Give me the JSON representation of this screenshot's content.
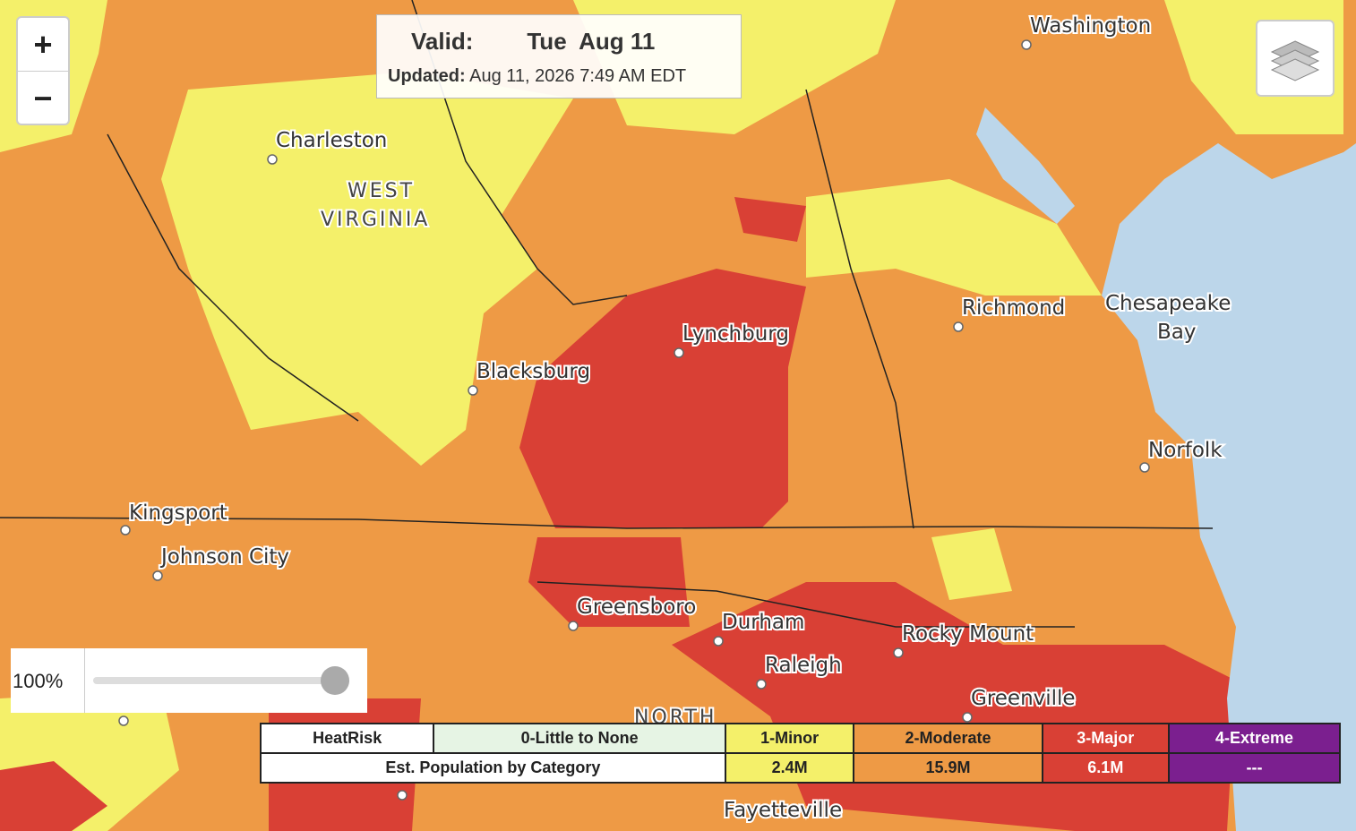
{
  "header": {
    "valid_label": "Valid:",
    "valid_date": "Tue  Aug 11",
    "updated_label": "Updated:",
    "updated_time": "Aug 11, 2026 7:49 AM EDT"
  },
  "zoom": {
    "in": "+",
    "out": "−"
  },
  "opacity": {
    "label": "100%"
  },
  "map_labels": [
    "Washington",
    "Charleston",
    "WEST",
    "VIRGINIA",
    "Chesapeake",
    "Bay",
    "Richmond",
    "Lynchburg",
    "Blacksburg",
    "Norfolk",
    "Kingsport",
    "Johnson City",
    "Greensboro",
    "Durham",
    "Raleigh",
    "Rocky Mount",
    "Greenville",
    "NORTH",
    "Fayetteville"
  ],
  "legend": {
    "header": [
      "HeatRisk",
      "0-Little to None",
      "1-Minor",
      "2-Moderate",
      "3-Major",
      "4-Extreme"
    ],
    "population_label": "Est. Population by Category",
    "population": [
      "2.4M",
      "15.9M",
      "6.1M",
      "---"
    ]
  }
}
